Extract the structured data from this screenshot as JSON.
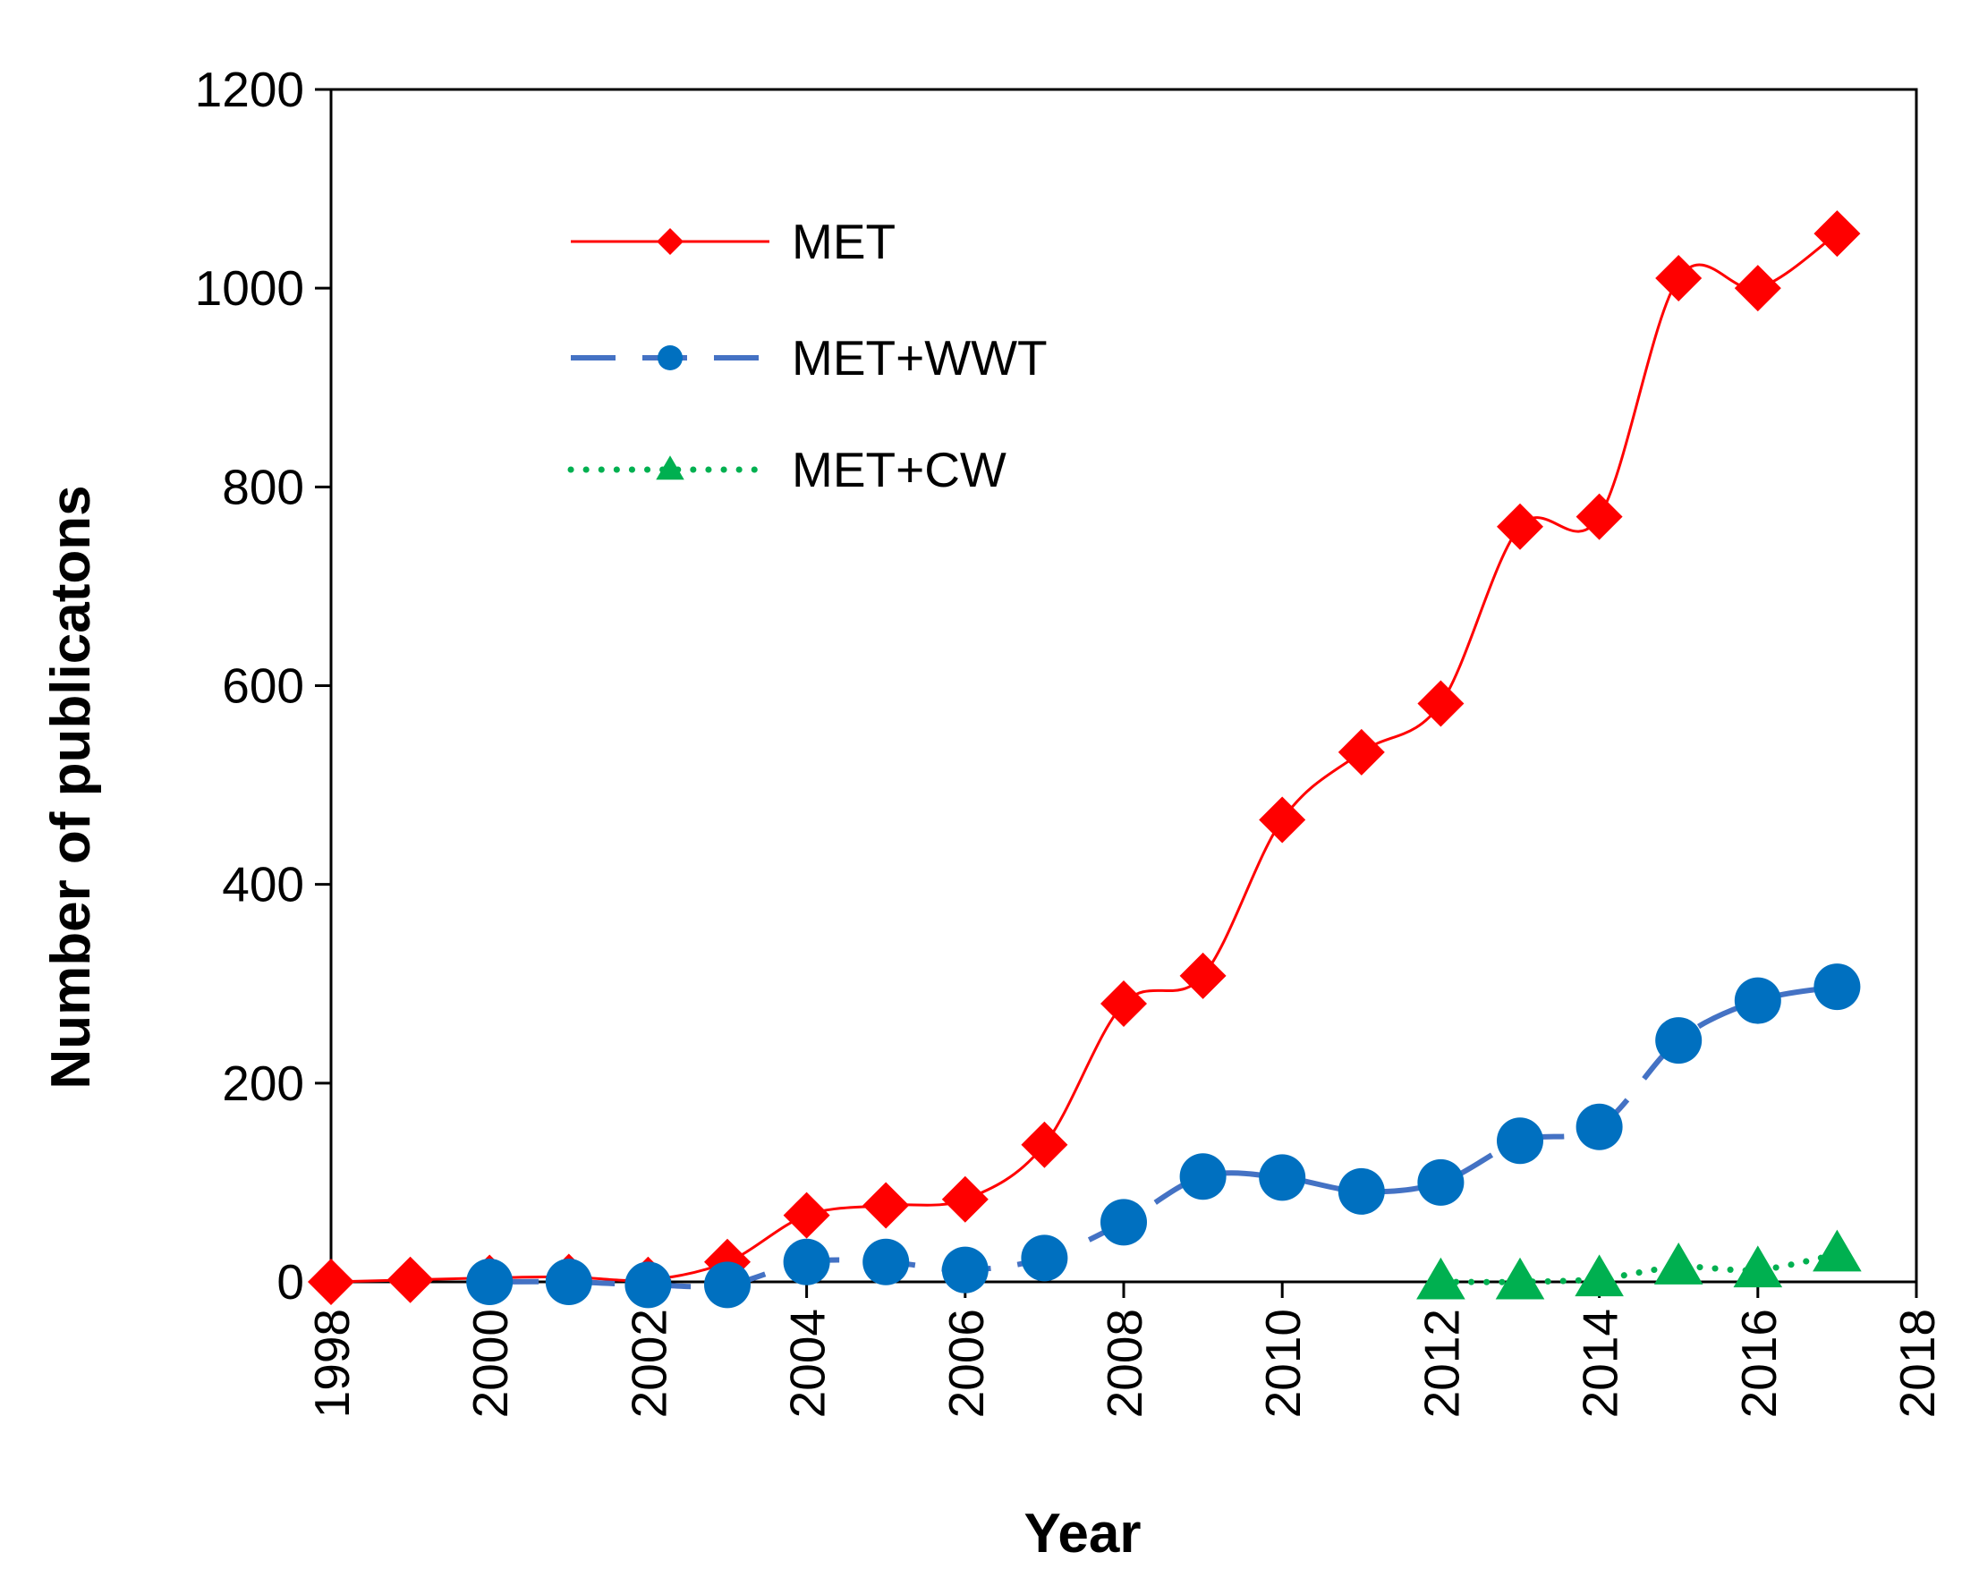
{
  "chart_data": {
    "type": "line",
    "title": "",
    "xlabel": "Year",
    "ylabel": "Number of publicatons",
    "xlim": [
      1998,
      2018
    ],
    "ylim": [
      0,
      1200
    ],
    "xticks": [
      1998,
      2000,
      2002,
      2004,
      2006,
      2008,
      2010,
      2012,
      2014,
      2016,
      2018
    ],
    "yticks": [
      0,
      200,
      400,
      600,
      800,
      1000,
      1200
    ],
    "grid": false,
    "legend_position": "top-left",
    "series": [
      {
        "name": "MET",
        "color": "#ff0000",
        "line_style": "solid",
        "marker": "diamond",
        "x": [
          1998,
          1999,
          2000,
          2001,
          2002,
          2003,
          2004,
          2005,
          2006,
          2007,
          2008,
          2009,
          2010,
          2011,
          2012,
          2013,
          2014,
          2015,
          2016,
          2017
        ],
        "y": [
          0,
          2,
          4,
          5,
          2,
          20,
          67,
          77,
          83,
          138,
          280,
          308,
          465,
          533,
          582,
          760,
          770,
          1010,
          1000,
          1055
        ]
      },
      {
        "name": "MET+WWT",
        "color": "#4472c4",
        "marker_color": "#0070c0",
        "line_style": "dashed",
        "marker": "circle",
        "x": [
          2000,
          2001,
          2002,
          2003,
          2004,
          2005,
          2006,
          2007,
          2008,
          2009,
          2010,
          2011,
          2012,
          2013,
          2014,
          2015,
          2016,
          2017
        ],
        "y": [
          0,
          0,
          -3,
          -3,
          20,
          20,
          12,
          24,
          60,
          106,
          105,
          91,
          100,
          142,
          156,
          243,
          283,
          297
        ]
      },
      {
        "name": "MET+CW",
        "color": "#00b050",
        "line_style": "dotted",
        "marker": "triangle",
        "x": [
          2012,
          2013,
          2014,
          2015,
          2016,
          2017
        ],
        "y": [
          0,
          0,
          3,
          15,
          12,
          28
        ]
      }
    ]
  }
}
